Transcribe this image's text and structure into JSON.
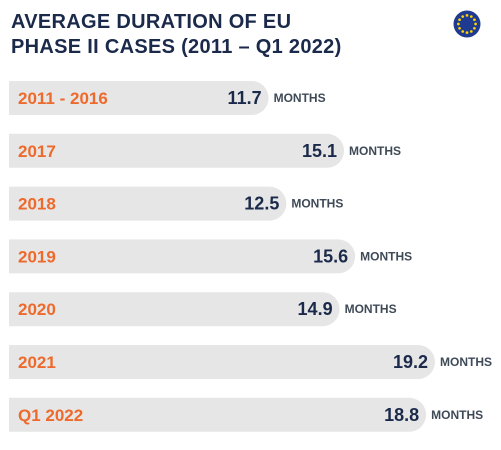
{
  "header": {
    "title_line1": "AVERAGE DURATION OF EU",
    "title_line2": "PHASE II CASES (2011 – Q1 2022)"
  },
  "icons": {
    "flag": "eu-flag-icon"
  },
  "colors": {
    "bar": "#e6e6e6",
    "label": "#ee6a2c",
    "value": "#1b2a4a",
    "unit": "#3f4a57",
    "flag_blue": "#1f3b8f",
    "flag_star": "#ffd200"
  },
  "chart_data": {
    "type": "bar",
    "orientation": "horizontal",
    "title": "AVERAGE DURATION OF EU PHASE II CASES (2011 – Q1 2022)",
    "categories": [
      "2011 - 2016",
      "2017",
      "2018",
      "2019",
      "2020",
      "2021",
      "Q1 2022"
    ],
    "values": [
      11.7,
      15.1,
      12.5,
      15.6,
      14.9,
      19.2,
      18.8
    ],
    "value_labels": [
      "11.7",
      "15.1",
      "12.5",
      "15.6",
      "14.9",
      "19.2",
      "18.8"
    ],
    "unit": "MONTHS",
    "xlim": [
      0,
      19.2
    ],
    "grid": false,
    "legend": "none"
  }
}
